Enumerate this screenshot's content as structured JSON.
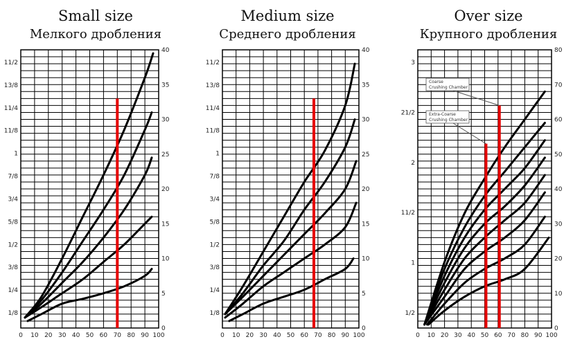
{
  "chart_data": [
    {
      "type": "line",
      "title": "Small size",
      "subtitle": "Мелкого дробления",
      "x_ticks": [
        "0",
        "10",
        "20",
        "30",
        "40",
        "50",
        "60",
        "70",
        "80",
        "90",
        "100"
      ],
      "xlim": [
        0,
        100
      ],
      "left_ticks": [
        "1/8",
        "1/4",
        "3/8",
        "1/2",
        "5/8",
        "3/4",
        "7/8",
        "1",
        "11/8",
        "11/4",
        "13/8",
        "11/2"
      ],
      "right_ticks": [
        "0",
        "5",
        "10",
        "15",
        "20",
        "25",
        "30",
        "35",
        "40"
      ],
      "ylim": [
        0,
        40
      ],
      "series": [
        {
          "x": [
            3,
            15,
            30,
            45,
            60,
            75,
            90,
            96
          ],
          "y": [
            1.5,
            4.5,
            10,
            16,
            22,
            28.5,
            36,
            39.5
          ]
        },
        {
          "x": [
            3,
            15,
            30,
            45,
            60,
            75,
            90,
            95
          ],
          "y": [
            1.5,
            4,
            8,
            12.5,
            17,
            22,
            28.5,
            31
          ]
        },
        {
          "x": [
            3,
            15,
            30,
            45,
            60,
            75,
            90,
            95
          ],
          "y": [
            1.5,
            3.5,
            6.5,
            9.5,
            13,
            17,
            22,
            24.5
          ]
        },
        {
          "x": [
            3,
            15,
            30,
            45,
            60,
            75,
            90,
            95
          ],
          "y": [
            1.5,
            3,
            5,
            7,
            9.5,
            12,
            15,
            16
          ]
        },
        {
          "x": [
            5,
            15,
            30,
            45,
            60,
            75,
            90,
            95
          ],
          "y": [
            1,
            2,
            3.5,
            4.2,
            5,
            6,
            7.5,
            8.5
          ]
        }
      ],
      "marker_lines": [
        {
          "x": 70,
          "y_top": 33,
          "label": ""
        }
      ]
    },
    {
      "type": "line",
      "title": "Medium size",
      "subtitle": "Среднего дробления",
      "x_ticks": [
        "0",
        "10",
        "20",
        "30",
        "40",
        "50",
        "60",
        "70",
        "80",
        "90",
        "100"
      ],
      "xlim": [
        0,
        100
      ],
      "left_ticks": [
        "1/8",
        "1/4",
        "3/8",
        "1/2",
        "5/8",
        "3/4",
        "7/8",
        "1",
        "11/8",
        "11/4",
        "13/8",
        "11/2"
      ],
      "right_ticks": [
        "0",
        "5",
        "10",
        "15",
        "20",
        "25",
        "30",
        "35",
        "40"
      ],
      "ylim": [
        0,
        40
      ],
      "series": [
        {
          "x": [
            2,
            15,
            30,
            45,
            60,
            75,
            90,
            97
          ],
          "y": [
            2,
            6,
            11,
            16,
            21,
            25.5,
            32,
            38
          ]
        },
        {
          "x": [
            2,
            15,
            30,
            45,
            60,
            75,
            90,
            97
          ],
          "y": [
            2,
            5,
            9,
            12.5,
            17,
            21,
            26,
            30
          ]
        },
        {
          "x": [
            2,
            15,
            30,
            45,
            60,
            75,
            90,
            98
          ],
          "y": [
            2,
            4.5,
            7.5,
            10.5,
            13.5,
            16.5,
            20,
            24
          ]
        },
        {
          "x": [
            2,
            15,
            30,
            45,
            60,
            75,
            90,
            98
          ],
          "y": [
            1.5,
            3.5,
            6,
            8,
            10,
            12,
            14.5,
            18
          ]
        },
        {
          "x": [
            5,
            15,
            30,
            45,
            60,
            75,
            90,
            96
          ],
          "y": [
            1,
            2,
            3.5,
            4.5,
            5.5,
            7,
            8.5,
            10
          ]
        }
      ],
      "marker_lines": [
        {
          "x": 67,
          "y_top": 33,
          "label": ""
        }
      ]
    },
    {
      "type": "line",
      "title": "Over size",
      "subtitle": "Крупного дробления",
      "x_ticks": [
        "0",
        "10",
        "20",
        "30",
        "40",
        "50",
        "60",
        "70",
        "80",
        "90",
        "100"
      ],
      "xlim": [
        0,
        100
      ],
      "left_ticks": [
        "1/2",
        "1",
        "11/2",
        "2",
        "21/2",
        "3"
      ],
      "right_ticks": [
        "0",
        "10",
        "20",
        "30",
        "40",
        "50",
        "60",
        "70",
        "80"
      ],
      "ylim": [
        0,
        80
      ],
      "series": [
        {
          "x": [
            5,
            20,
            35,
            50,
            65,
            80,
            95
          ],
          "y": [
            1,
            19,
            33,
            43,
            52,
            60,
            68
          ]
        },
        {
          "x": [
            5,
            20,
            35,
            50,
            65,
            80,
            95
          ],
          "y": [
            1,
            17,
            29,
            38,
            45,
            52,
            59
          ]
        },
        {
          "x": [
            5,
            20,
            35,
            50,
            65,
            80,
            95
          ],
          "y": [
            1,
            15,
            26,
            34,
            40,
            46,
            54
          ]
        },
        {
          "x": [
            5,
            20,
            35,
            50,
            65,
            80,
            95
          ],
          "y": [
            1,
            13,
            23,
            30,
            35,
            41,
            49
          ]
        },
        {
          "x": [
            5,
            20,
            35,
            50,
            65,
            80,
            95
          ],
          "y": [
            1,
            11,
            20,
            26,
            31,
            36,
            44
          ]
        },
        {
          "x": [
            5,
            20,
            35,
            50,
            65,
            80,
            95
          ],
          "y": [
            1,
            9,
            17,
            22,
            26,
            31,
            39
          ]
        },
        {
          "x": [
            7,
            20,
            35,
            50,
            65,
            80,
            95
          ],
          "y": [
            1,
            7,
            13,
            17,
            20,
            24,
            32
          ]
        },
        {
          "x": [
            8,
            20,
            35,
            50,
            65,
            80,
            98
          ],
          "y": [
            1,
            5,
            9,
            12,
            14,
            17,
            26
          ]
        }
      ],
      "marker_lines": [
        {
          "x": 51,
          "y_top": 53,
          "label": "Extra-Coarse Crushing Chamber"
        },
        {
          "x": 61,
          "y_top": 64,
          "label": "Coarse Crushing Chamber"
        }
      ]
    }
  ],
  "colors": {
    "curve": "#000000",
    "grid": "#000000",
    "marker": "#e60000",
    "frame": "#000000"
  }
}
